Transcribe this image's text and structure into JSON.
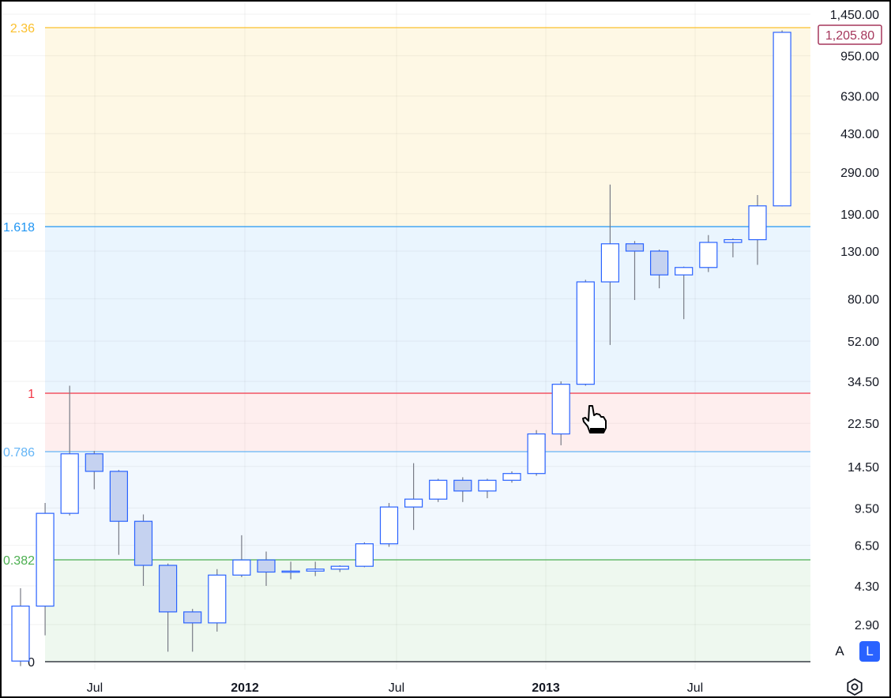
{
  "chart_data": {
    "type": "candlestick",
    "scale": "log",
    "y_axis_ticks": [
      "1,450.00",
      "950.00",
      "630.00",
      "430.00",
      "290.00",
      "190.00",
      "130.00",
      "80.00",
      "52.00",
      "34.50",
      "22.50",
      "14.50",
      "9.50",
      "6.50",
      "4.30",
      "2.90"
    ],
    "x_axis_ticks": [
      {
        "label": "Jul",
        "bold": false
      },
      {
        "label": "2012",
        "bold": true
      },
      {
        "label": "Jul",
        "bold": false
      },
      {
        "label": "2013",
        "bold": true
      },
      {
        "label": "Jul",
        "bold": false
      }
    ],
    "last_price": "1,205.80",
    "candles": [
      {
        "o": 2.0,
        "h": 4.2,
        "l": 1.9,
        "c": 3.5
      },
      {
        "o": 3.5,
        "h": 10.0,
        "l": 2.6,
        "c": 9.0
      },
      {
        "o": 9.0,
        "h": 33.0,
        "l": 8.8,
        "c": 16.5
      },
      {
        "o": 16.5,
        "h": 17.0,
        "l": 11.5,
        "c": 13.8
      },
      {
        "o": 13.8,
        "h": 14.0,
        "l": 5.9,
        "c": 8.3
      },
      {
        "o": 8.3,
        "h": 8.9,
        "l": 4.3,
        "c": 5.3
      },
      {
        "o": 5.3,
        "h": 5.4,
        "l": 2.2,
        "c": 3.3
      },
      {
        "o": 3.3,
        "h": 3.4,
        "l": 2.2,
        "c": 2.95
      },
      {
        "o": 2.95,
        "h": 5.1,
        "l": 2.7,
        "c": 4.8
      },
      {
        "o": 4.8,
        "h": 7.2,
        "l": 4.7,
        "c": 5.6
      },
      {
        "o": 5.6,
        "h": 6.1,
        "l": 4.3,
        "c": 4.95
      },
      {
        "o": 4.95,
        "h": 5.5,
        "l": 4.6,
        "c": 5.0
      },
      {
        "o": 5.0,
        "h": 5.5,
        "l": 4.75,
        "c": 5.1
      },
      {
        "o": 5.1,
        "h": 5.3,
        "l": 4.95,
        "c": 5.25
      },
      {
        "o": 5.25,
        "h": 6.7,
        "l": 5.2,
        "c": 6.6
      },
      {
        "o": 6.6,
        "h": 10.0,
        "l": 6.4,
        "c": 9.6
      },
      {
        "o": 9.6,
        "h": 15.0,
        "l": 7.6,
        "c": 10.4
      },
      {
        "o": 10.4,
        "h": 12.8,
        "l": 10.1,
        "c": 12.6
      },
      {
        "o": 12.6,
        "h": 13.0,
        "l": 10.1,
        "c": 11.3
      },
      {
        "o": 11.3,
        "h": 12.8,
        "l": 10.5,
        "c": 12.6
      },
      {
        "o": 12.6,
        "h": 13.8,
        "l": 12.3,
        "c": 13.5
      },
      {
        "o": 13.5,
        "h": 21.0,
        "l": 13.2,
        "c": 20.2
      },
      {
        "o": 20.2,
        "h": 34.5,
        "l": 18.0,
        "c": 33.5
      },
      {
        "o": 33.5,
        "h": 97.0,
        "l": 33.0,
        "c": 95.0
      },
      {
        "o": 95.0,
        "h": 256.0,
        "l": 50.0,
        "c": 140.0
      },
      {
        "o": 140.0,
        "h": 144.0,
        "l": 79.0,
        "c": 130.0
      },
      {
        "o": 130.0,
        "h": 132.0,
        "l": 89.0,
        "c": 102.0
      },
      {
        "o": 102.0,
        "h": 111.0,
        "l": 65.0,
        "c": 110.0
      },
      {
        "o": 110.0,
        "h": 153.0,
        "l": 105.0,
        "c": 142.0
      },
      {
        "o": 142.0,
        "h": 148.0,
        "l": 122.0,
        "c": 146.0
      },
      {
        "o": 146.0,
        "h": 230.0,
        "l": 113.0,
        "c": 206.0
      },
      {
        "o": 206.0,
        "h": 1230.0,
        "l": 205.0,
        "c": 1205.8
      }
    ],
    "fib_levels": [
      {
        "label": "0",
        "color": "#131722"
      },
      {
        "label": "0.382",
        "color": "#4caf50"
      },
      {
        "label": "0.786",
        "color": "#64b5f6"
      },
      {
        "label": "1",
        "color": "#f23645"
      },
      {
        "label": "1.618",
        "color": "#2196f3"
      },
      {
        "label": "2.36",
        "color": "#fbc02d"
      }
    ],
    "colors": {
      "up_border": "#2962ff",
      "up_fill": "#ffffff",
      "down_fill": "#c5d2f0",
      "wick": "#787b86"
    }
  },
  "controls": {
    "auto_label": "A",
    "log_label": "L"
  }
}
